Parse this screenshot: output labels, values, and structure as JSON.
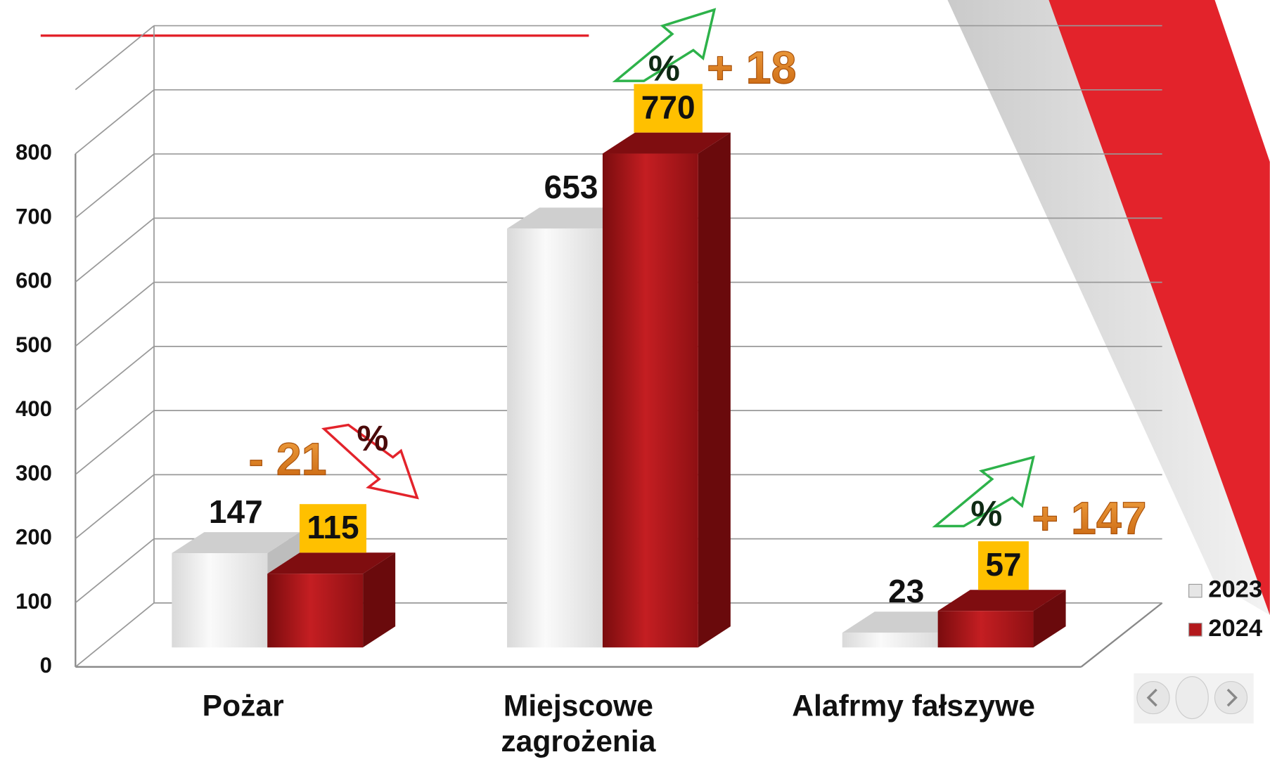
{
  "chart_data": {
    "type": "bar3d",
    "categories": [
      "Pożar",
      "Miejscowe zagrożenia",
      "Alafrmy fałszywe"
    ],
    "series": [
      {
        "name": "2023",
        "color": "#e6e6e6",
        "values": [
          147,
          653,
          23
        ]
      },
      {
        "name": "2024",
        "color": "#b3191c",
        "values": [
          115,
          770,
          57
        ]
      }
    ],
    "ylim": [
      0,
      900
    ],
    "yticks": [
      0,
      100,
      200,
      300,
      400,
      500,
      600,
      700,
      800
    ],
    "grid": true,
    "legend": "right",
    "annotations": [
      {
        "symbol": "%",
        "text": "- 21",
        "direction": "down"
      },
      {
        "symbol": "%",
        "text": "+ 18",
        "direction": "up"
      },
      {
        "symbol": "%",
        "text": "+ 147",
        "direction": "up"
      }
    ]
  }
}
